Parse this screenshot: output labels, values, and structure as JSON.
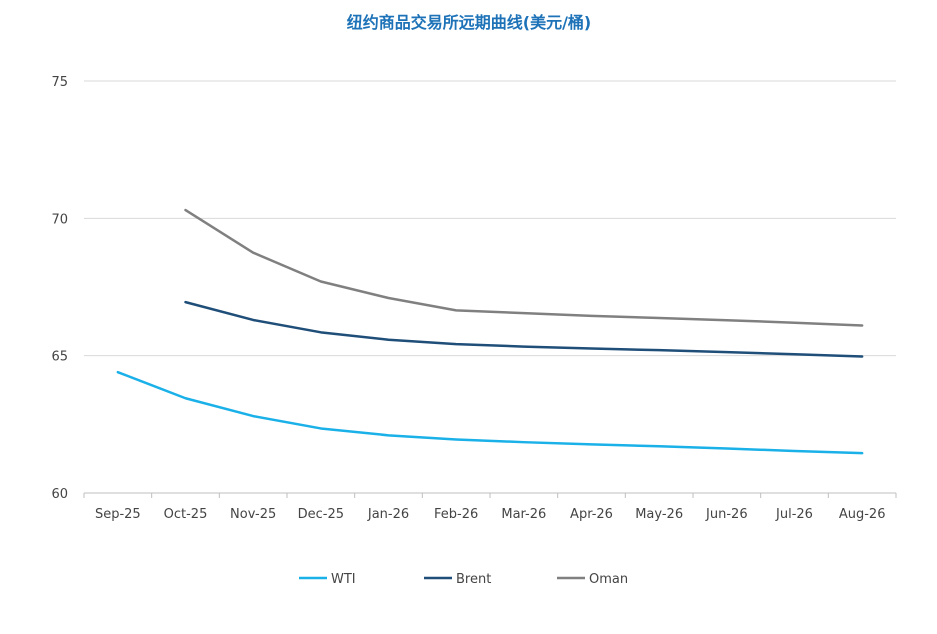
{
  "chart_data": {
    "type": "line",
    "title": "纽约商品交易所远期曲线(美元/桶)",
    "xlabel": "",
    "ylabel": "",
    "categories": [
      "Sep-25",
      "Oct-25",
      "Nov-25",
      "Dec-25",
      "Jan-26",
      "Feb-26",
      "Mar-26",
      "Apr-26",
      "May-26",
      "Jun-26",
      "Jul-26",
      "Aug-26"
    ],
    "ylim": [
      60,
      75
    ],
    "yticks": [
      "60",
      "65",
      "70",
      "75"
    ],
    "grid": true,
    "legend": "bottom",
    "series": [
      {
        "name": "WTI",
        "color": "#1ab0e8",
        "values": [
          64.4,
          63.45,
          62.8,
          62.35,
          62.1,
          61.95,
          61.85,
          61.77,
          61.7,
          61.62,
          61.53,
          61.45
        ]
      },
      {
        "name": "Brent",
        "color": "#1f4e79",
        "values": [
          null,
          66.95,
          66.3,
          65.85,
          65.58,
          65.42,
          65.33,
          65.26,
          65.2,
          65.13,
          65.05,
          64.97
        ]
      },
      {
        "name": "Oman",
        "color": "#808080",
        "values": [
          null,
          70.3,
          68.75,
          67.7,
          67.1,
          66.65,
          66.55,
          66.45,
          66.37,
          66.29,
          66.2,
          66.1
        ]
      }
    ]
  }
}
